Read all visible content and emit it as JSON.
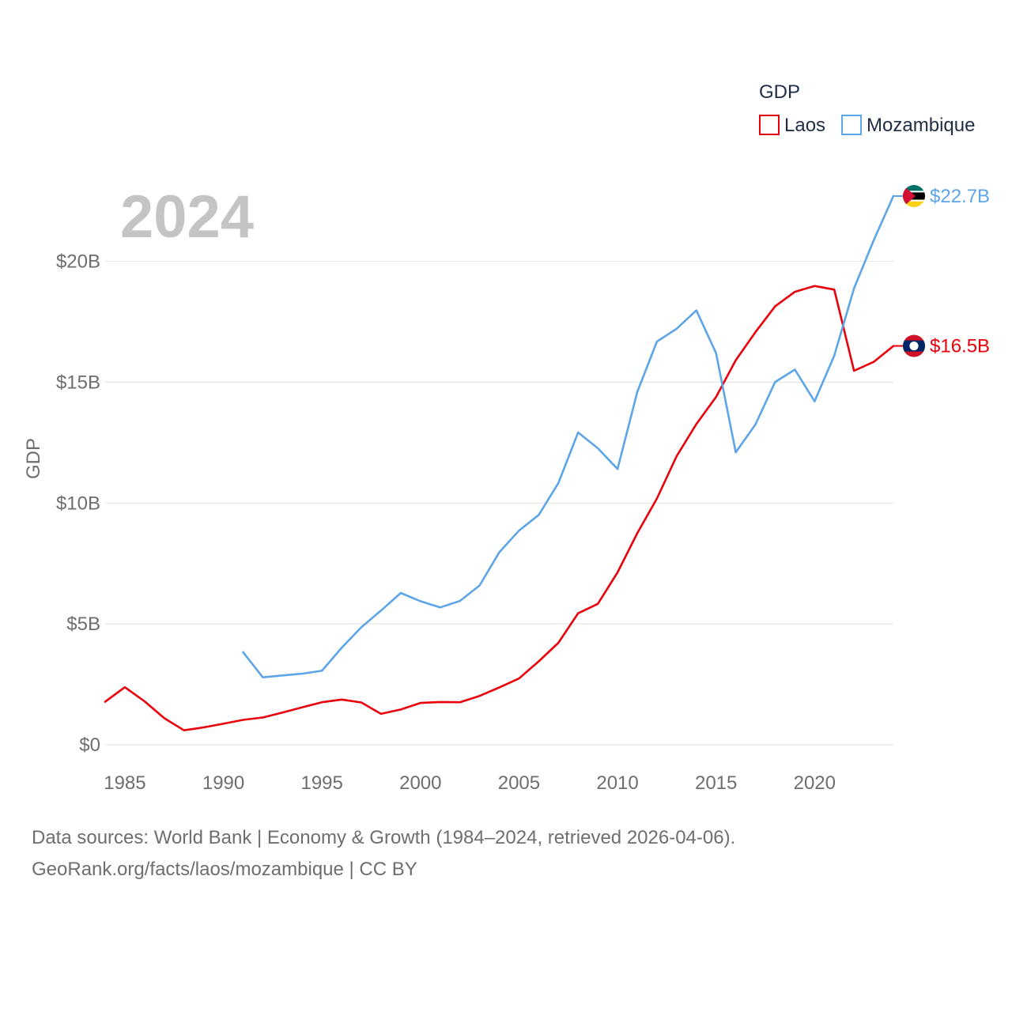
{
  "chart_data": {
    "type": "line",
    "ylabel": "GDP",
    "xlabel": "",
    "legend": {
      "title": "GDP",
      "position": "top-right"
    },
    "year_overlay": "2024",
    "x": [
      1984,
      1985,
      1986,
      1987,
      1988,
      1989,
      1990,
      1991,
      1992,
      1993,
      1994,
      1995,
      1996,
      1997,
      1998,
      1999,
      2000,
      2001,
      2002,
      2003,
      2004,
      2005,
      2006,
      2007,
      2008,
      2009,
      2010,
      2011,
      2012,
      2013,
      2014,
      2015,
      2016,
      2017,
      2018,
      2019,
      2020,
      2021,
      2022,
      2023,
      2024
    ],
    "xlim": [
      1984,
      2024
    ],
    "ylim": [
      0,
      22.7
    ],
    "x_ticks": [
      1985,
      1990,
      1995,
      2000,
      2005,
      2010,
      2015,
      2020
    ],
    "x_tick_labels": [
      "1985",
      "1990",
      "1995",
      "2000",
      "2005",
      "2010",
      "2015",
      "2020"
    ],
    "y_ticks": [
      0,
      5,
      10,
      15,
      20
    ],
    "y_tick_labels": [
      "$0",
      "$5B",
      "$10B",
      "$15B",
      "$20B"
    ],
    "grid": "horizontal",
    "series": [
      {
        "name": "Laos",
        "color": "#e8000b",
        "end_label": "$16.5B",
        "flag_icon": "laos-flag-icon",
        "values": [
          1.78,
          2.38,
          1.8,
          1.1,
          0.6,
          0.72,
          0.87,
          1.03,
          1.13,
          1.33,
          1.55,
          1.76,
          1.87,
          1.75,
          1.28,
          1.46,
          1.73,
          1.77,
          1.76,
          2.02,
          2.37,
          2.74,
          3.45,
          4.22,
          5.44,
          5.83,
          7.13,
          8.75,
          10.19,
          11.94,
          13.27,
          14.39,
          15.91,
          17.07,
          18.14,
          18.74,
          18.98,
          18.83,
          15.47,
          15.84,
          16.5
        ]
      },
      {
        "name": "Mozambique",
        "color": "#5ca5e8",
        "end_label": "$22.7B",
        "flag_icon": "mozambique-flag-icon",
        "values": [
          null,
          null,
          null,
          null,
          null,
          null,
          null,
          3.83,
          2.79,
          2.87,
          2.94,
          3.06,
          4.01,
          4.86,
          5.55,
          6.28,
          5.94,
          5.68,
          5.95,
          6.59,
          7.96,
          8.86,
          9.51,
          10.83,
          12.92,
          12.27,
          11.41,
          14.59,
          16.68,
          17.21,
          17.97,
          16.2,
          12.1,
          13.25,
          15.01,
          15.52,
          14.21,
          16.1,
          18.88,
          20.87,
          22.7
        ]
      }
    ]
  },
  "footer": {
    "sources": "Data sources: World Bank | Economy & Growth (1984–2024, retrieved 2026-04-06).",
    "license": "GeoRank.org/facts/laos/mozambique | CC BY"
  }
}
